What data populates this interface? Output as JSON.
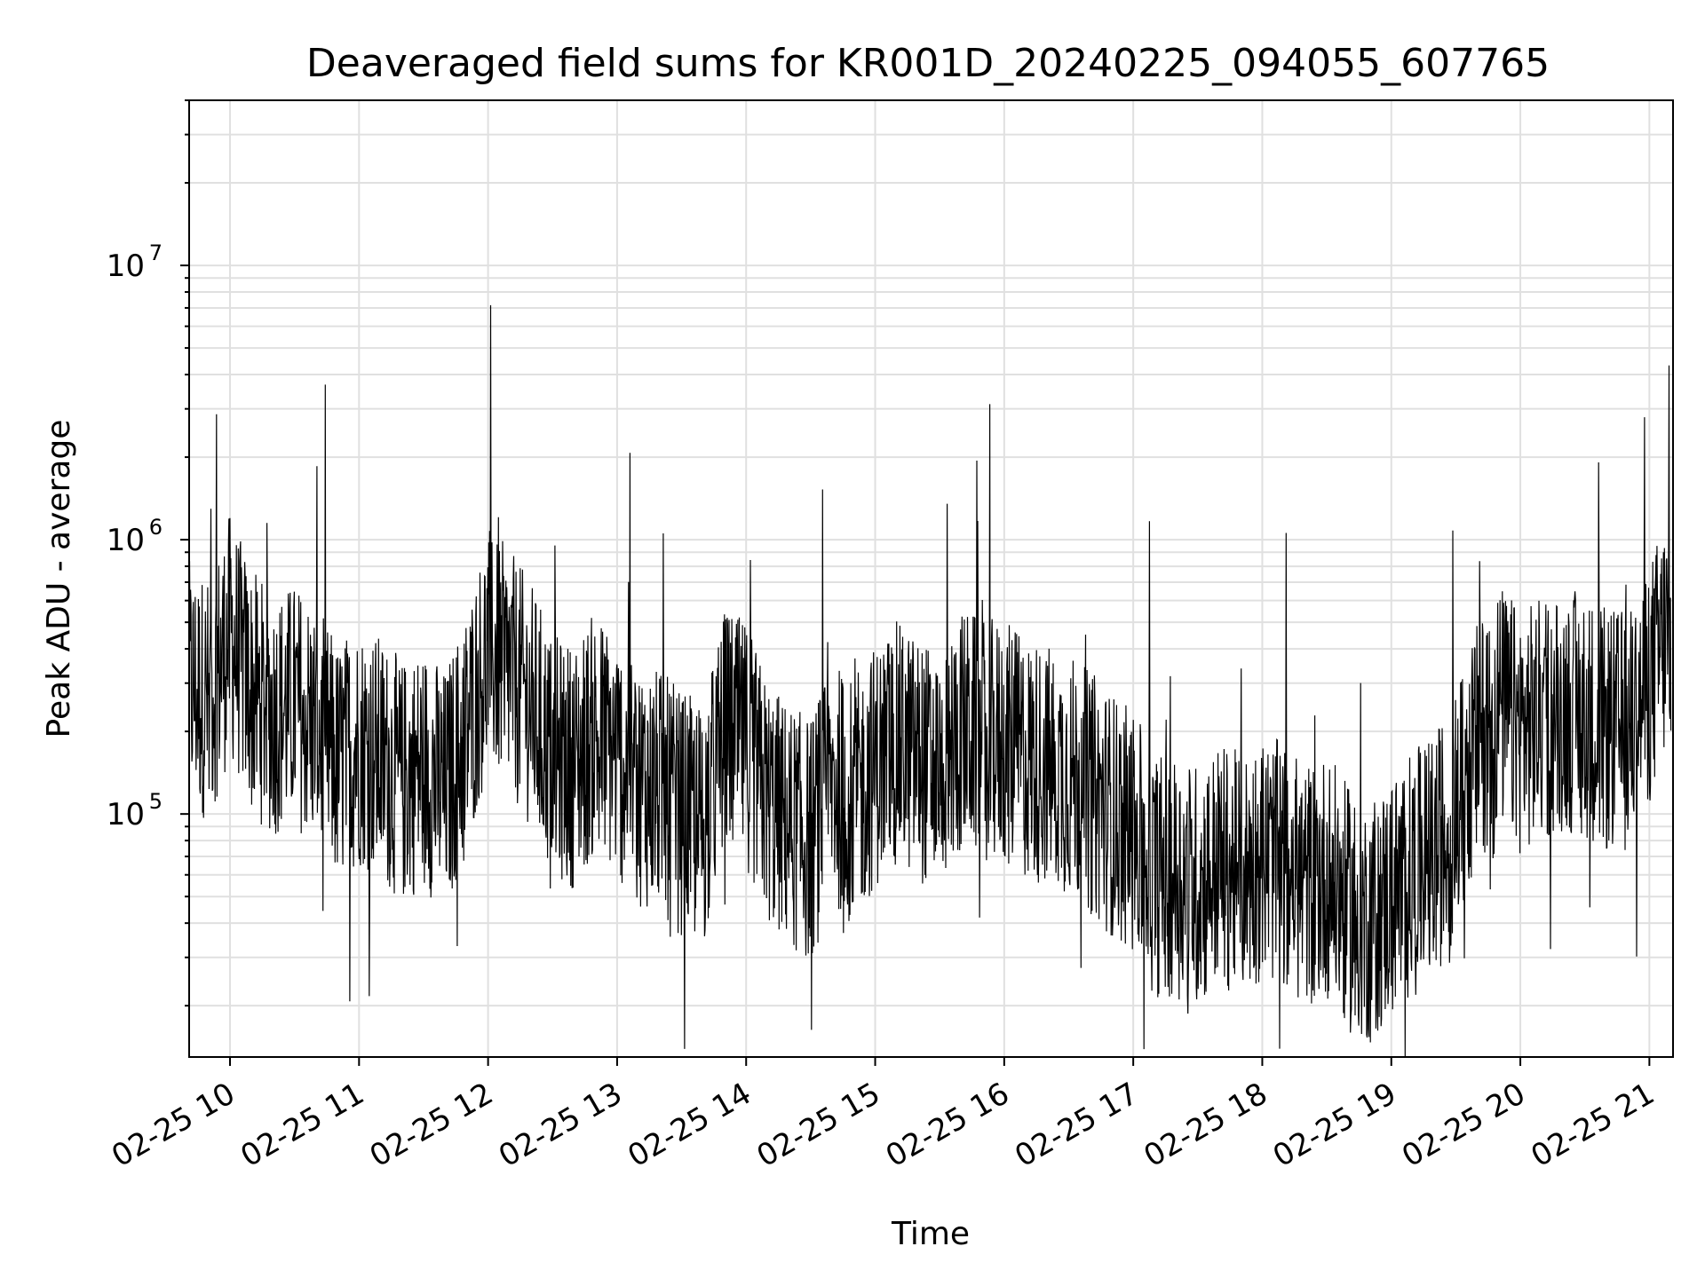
{
  "chart_data": {
    "type": "line",
    "title": "Deaveraged field sums for KR001D_20240225_094055_607765",
    "xlabel": "Time",
    "ylabel": "Peak ADU - average",
    "yscale": "log",
    "ylim": [
      13000,
      40000000
    ],
    "xlim": [
      "2024-02-25 09:41",
      "2024-02-25 21:11"
    ],
    "grid": true,
    "line_color": "#000000",
    "grid_color": "#e0e0e0",
    "x_ticks": [
      {
        "value": "2024-02-25 10:00",
        "label": "02-25 10"
      },
      {
        "value": "2024-02-25 11:00",
        "label": "02-25 11"
      },
      {
        "value": "2024-02-25 12:00",
        "label": "02-25 12"
      },
      {
        "value": "2024-02-25 13:00",
        "label": "02-25 13"
      },
      {
        "value": "2024-02-25 14:00",
        "label": "02-25 14"
      },
      {
        "value": "2024-02-25 15:00",
        "label": "02-25 15"
      },
      {
        "value": "2024-02-25 16:00",
        "label": "02-25 16"
      },
      {
        "value": "2024-02-25 17:00",
        "label": "02-25 17"
      },
      {
        "value": "2024-02-25 18:00",
        "label": "02-25 18"
      },
      {
        "value": "2024-02-25 19:00",
        "label": "02-25 19"
      },
      {
        "value": "2024-02-25 20:00",
        "label": "02-25 20"
      },
      {
        "value": "2024-02-25 21:00",
        "label": "02-25 21"
      }
    ],
    "y_ticks": [
      {
        "value": 100000,
        "base": "10",
        "exp": "5"
      },
      {
        "value": 1000000,
        "base": "10",
        "exp": "6"
      },
      {
        "value": 10000000,
        "base": "10",
        "exp": "7"
      }
    ],
    "series": [
      {
        "x": [
          "2024-02-25 09:41",
          "2024-02-25 09:50",
          "2024-02-25 10:00",
          "2024-02-25 10:10",
          "2024-02-25 10:20",
          "2024-02-25 10:30",
          "2024-02-25 10:40",
          "2024-02-25 10:50",
          "2024-02-25 11:00",
          "2024-02-25 11:10",
          "2024-02-25 11:20",
          "2024-02-25 11:30",
          "2024-02-25 11:40",
          "2024-02-25 11:50",
          "2024-02-25 12:00",
          "2024-02-25 12:10",
          "2024-02-25 12:20",
          "2024-02-25 12:30",
          "2024-02-25 12:40",
          "2024-02-25 12:50",
          "2024-02-25 13:00",
          "2024-02-25 13:10",
          "2024-02-25 13:20",
          "2024-02-25 13:30",
          "2024-02-25 13:40",
          "2024-02-25 13:50",
          "2024-02-25 14:00",
          "2024-02-25 14:10",
          "2024-02-25 14:20",
          "2024-02-25 14:30",
          "2024-02-25 14:40",
          "2024-02-25 14:50",
          "2024-02-25 15:00",
          "2024-02-25 15:10",
          "2024-02-25 15:20",
          "2024-02-25 15:30",
          "2024-02-25 15:40",
          "2024-02-25 15:50",
          "2024-02-25 16:00",
          "2024-02-25 16:10",
          "2024-02-25 16:20",
          "2024-02-25 16:30",
          "2024-02-25 16:40",
          "2024-02-25 16:50",
          "2024-02-25 17:00",
          "2024-02-25 17:10",
          "2024-02-25 17:20",
          "2024-02-25 17:30",
          "2024-02-25 17:40",
          "2024-02-25 17:50",
          "2024-02-25 18:00",
          "2024-02-25 18:10",
          "2024-02-25 18:20",
          "2024-02-25 18:30",
          "2024-02-25 18:40",
          "2024-02-25 18:50",
          "2024-02-25 19:00",
          "2024-02-25 19:10",
          "2024-02-25 19:20",
          "2024-02-25 19:30",
          "2024-02-25 19:40",
          "2024-02-25 19:50",
          "2024-02-25 20:00",
          "2024-02-25 20:10",
          "2024-02-25 20:20",
          "2024-02-25 20:30",
          "2024-02-25 20:40",
          "2024-02-25 20:50",
          "2024-02-25 21:00",
          "2024-02-25 21:10"
        ],
        "y": [
          300000,
          260000,
          450000,
          280000,
          230000,
          250000,
          210000,
          150000,
          180000,
          160000,
          130000,
          150000,
          120000,
          200000,
          400000,
          330000,
          250000,
          160000,
          150000,
          200000,
          160000,
          130000,
          120000,
          100000,
          90000,
          200000,
          180000,
          110000,
          90000,
          80000,
          130000,
          110000,
          150000,
          180000,
          160000,
          140000,
          200000,
          190000,
          180000,
          160000,
          150000,
          140000,
          120000,
          100000,
          85000,
          60000,
          60000,
          55000,
          65000,
          60000,
          70000,
          65000,
          55000,
          60000,
          45000,
          40000,
          50000,
          60000,
          70000,
          100000,
          180000,
          250000,
          200000,
          220000,
          240000,
          230000,
          200000,
          200000,
          300000,
          500000
        ]
      }
    ]
  }
}
